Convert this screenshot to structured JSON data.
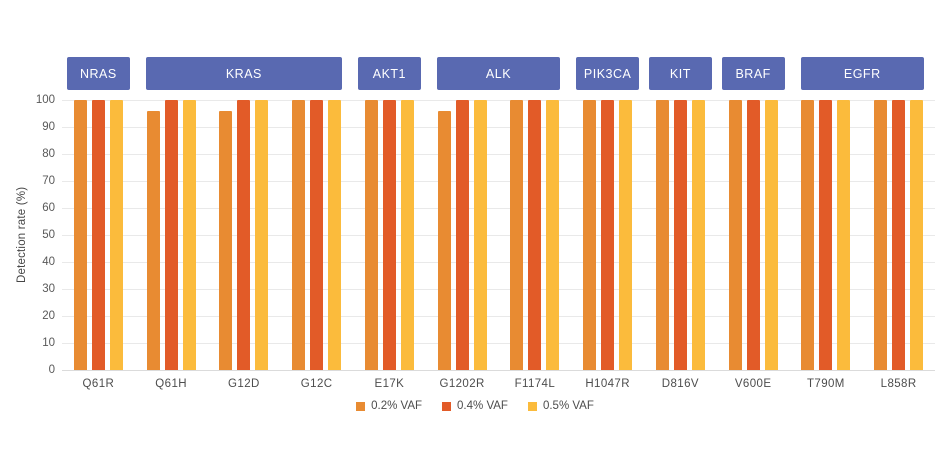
{
  "chart_data": {
    "type": "bar",
    "ylabel": "Detection rate (%)",
    "ylim": [
      0,
      100
    ],
    "ytick_step": 10,
    "grid": true,
    "legend_position": "bottom",
    "categories": [
      "Q61R",
      "Q61H",
      "G12D",
      "G12C",
      "E17K",
      "G1202R",
      "F1174L",
      "H1047R",
      "D816V",
      "V600E",
      "T790M",
      "L858R"
    ],
    "gene_groups": [
      {
        "label": "NRAS",
        "start": 0,
        "end": 0
      },
      {
        "label": "KRAS",
        "start": 1,
        "end": 3
      },
      {
        "label": "AKT1",
        "start": 4,
        "end": 4
      },
      {
        "label": "ALK",
        "start": 5,
        "end": 6
      },
      {
        "label": "PIK3CA",
        "start": 7,
        "end": 7
      },
      {
        "label": "KIT",
        "start": 8,
        "end": 8
      },
      {
        "label": "BRAF",
        "start": 9,
        "end": 9
      },
      {
        "label": "EGFR",
        "start": 10,
        "end": 11
      }
    ],
    "series": [
      {
        "name": "0.2% VAF",
        "color": "#E88B32",
        "values": [
          100,
          96,
          96,
          100,
          100,
          96,
          100,
          100,
          100,
          100,
          100,
          100
        ]
      },
      {
        "name": "0.4% VAF",
        "color": "#E25B28",
        "values": [
          100,
          100,
          100,
          100,
          100,
          100,
          100,
          100,
          100,
          100,
          100,
          100
        ]
      },
      {
        "name": "0.5% VAF",
        "color": "#FBBB3C",
        "values": [
          100,
          100,
          100,
          100,
          100,
          100,
          100,
          100,
          100,
          100,
          100,
          100
        ]
      }
    ]
  },
  "colors": {
    "background": "#FFFFFF",
    "badge_bg": "#5969B1",
    "badge_text": "#FFFFFF",
    "grid_line": "#E9E9E9",
    "baseline": "#DBDBDB",
    "tick_text": "#595959",
    "label_text": "#4D4D4D",
    "axis_title_text": "#454545"
  }
}
